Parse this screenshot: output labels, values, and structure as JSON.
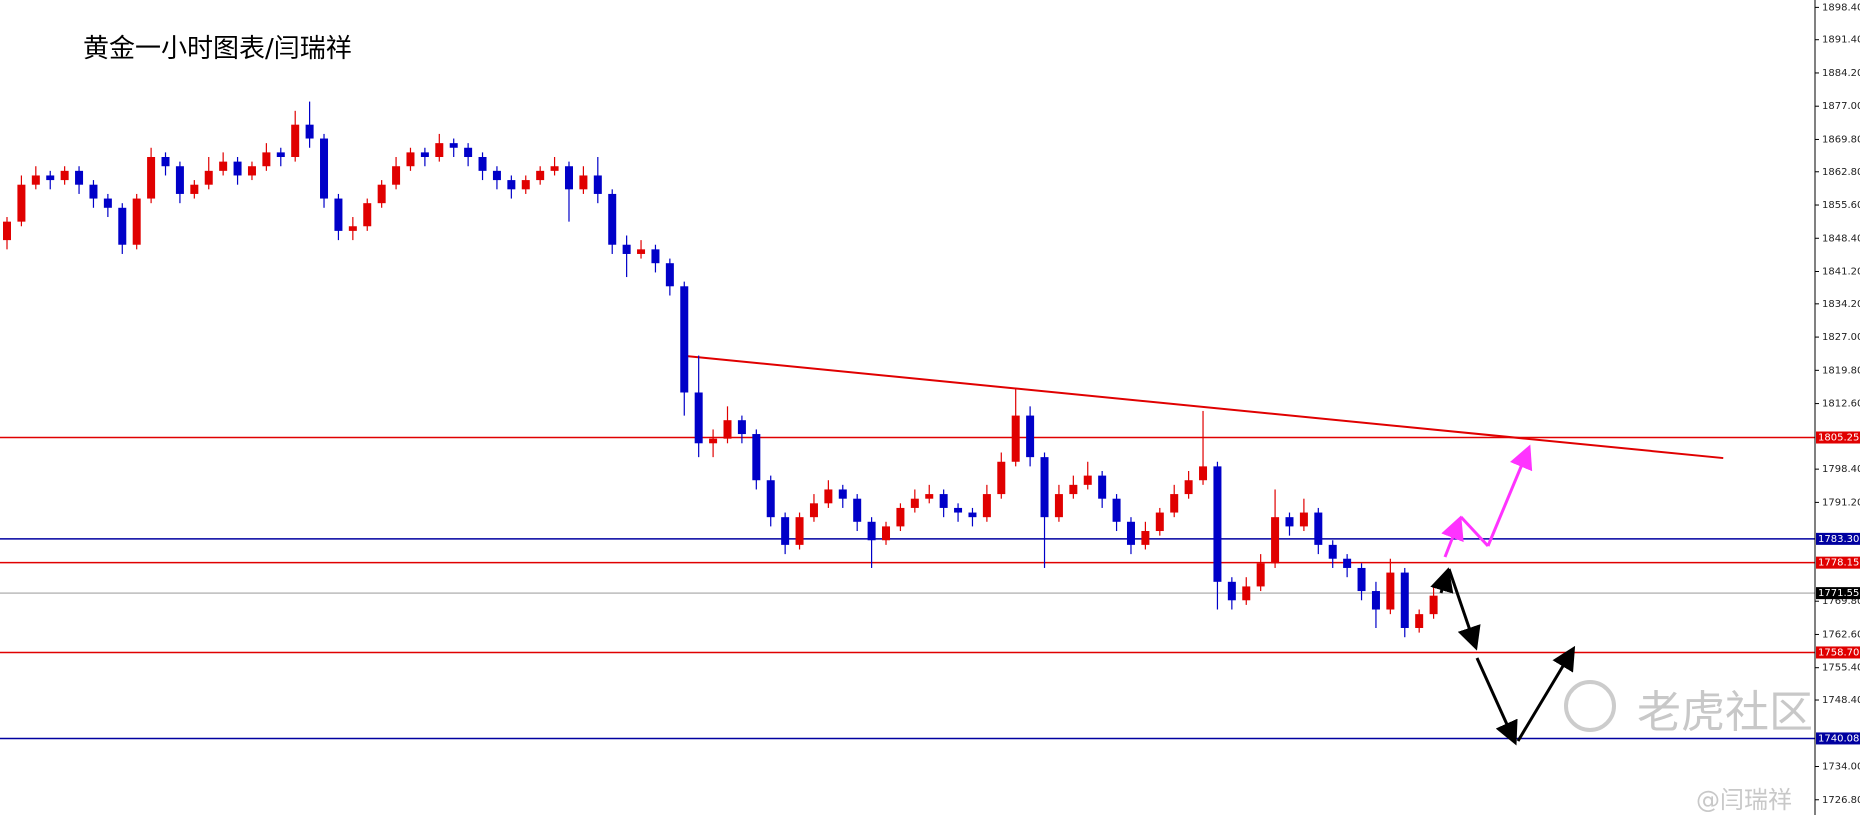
{
  "chart_data": {
    "type": "candlestick",
    "title": "黄金一小时图表/闫瑞祥",
    "up_color": "#e00000",
    "down_color": "#0000c8",
    "ohlc": [
      [
        1848,
        1853,
        1846,
        1852
      ],
      [
        1852,
        1862,
        1851,
        1860
      ],
      [
        1860,
        1864,
        1859,
        1862
      ],
      [
        1862,
        1863,
        1859,
        1861
      ],
      [
        1861,
        1864,
        1860,
        1863
      ],
      [
        1863,
        1864,
        1858,
        1860
      ],
      [
        1860,
        1861,
        1855,
        1857
      ],
      [
        1857,
        1858,
        1853,
        1855
      ],
      [
        1855,
        1856,
        1845,
        1847
      ],
      [
        1847,
        1858,
        1846,
        1857
      ],
      [
        1857,
        1868,
        1856,
        1866
      ],
      [
        1866,
        1867,
        1862,
        1864
      ],
      [
        1864,
        1865,
        1856,
        1858
      ],
      [
        1858,
        1861,
        1857,
        1860
      ],
      [
        1860,
        1866,
        1859,
        1863
      ],
      [
        1863,
        1867,
        1862,
        1865
      ],
      [
        1865,
        1866,
        1860,
        1862
      ],
      [
        1862,
        1865,
        1861,
        1864
      ],
      [
        1864,
        1869,
        1863,
        1867
      ],
      [
        1867,
        1868,
        1864,
        1866
      ],
      [
        1866,
        1876,
        1865,
        1873
      ],
      [
        1873,
        1878,
        1868,
        1870
      ],
      [
        1870,
        1871,
        1855,
        1857
      ],
      [
        1857,
        1858,
        1848,
        1850
      ],
      [
        1850,
        1853,
        1848,
        1851
      ],
      [
        1851,
        1857,
        1850,
        1856
      ],
      [
        1856,
        1861,
        1855,
        1860
      ],
      [
        1860,
        1866,
        1859,
        1864
      ],
      [
        1864,
        1868,
        1863,
        1867
      ],
      [
        1867,
        1868,
        1864,
        1866
      ],
      [
        1866,
        1871,
        1865,
        1869
      ],
      [
        1869,
        1870,
        1866,
        1868
      ],
      [
        1868,
        1869,
        1864,
        1866
      ],
      [
        1866,
        1867,
        1861,
        1863
      ],
      [
        1863,
        1864,
        1859,
        1861
      ],
      [
        1861,
        1862,
        1857,
        1859
      ],
      [
        1859,
        1862,
        1858,
        1861
      ],
      [
        1861,
        1864,
        1860,
        1863
      ],
      [
        1863,
        1866,
        1862,
        1864
      ],
      [
        1864,
        1865,
        1852,
        1859
      ],
      [
        1859,
        1864,
        1858,
        1862
      ],
      [
        1862,
        1866,
        1856,
        1858
      ],
      [
        1858,
        1859,
        1845,
        1847
      ],
      [
        1847,
        1849,
        1840,
        1845
      ],
      [
        1845,
        1848,
        1844,
        1846
      ],
      [
        1846,
        1847,
        1841,
        1843
      ],
      [
        1843,
        1844,
        1836,
        1838
      ],
      [
        1838,
        1839,
        1810,
        1815
      ],
      [
        1815,
        1823,
        1801,
        1804
      ],
      [
        1804,
        1807,
        1801,
        1805
      ],
      [
        1805,
        1812,
        1804,
        1809
      ],
      [
        1809,
        1810,
        1804,
        1806
      ],
      [
        1806,
        1807,
        1794,
        1796
      ],
      [
        1796,
        1797,
        1786,
        1788
      ],
      [
        1788,
        1789,
        1780,
        1782
      ],
      [
        1782,
        1789,
        1781,
        1788
      ],
      [
        1788,
        1793,
        1787,
        1791
      ],
      [
        1791,
        1796,
        1790,
        1794
      ],
      [
        1794,
        1795,
        1790,
        1792
      ],
      [
        1792,
        1793,
        1785,
        1787
      ],
      [
        1787,
        1788,
        1777,
        1783
      ],
      [
        1783,
        1787,
        1782,
        1786
      ],
      [
        1786,
        1791,
        1785,
        1790
      ],
      [
        1790,
        1794,
        1789,
        1792
      ],
      [
        1792,
        1795,
        1791,
        1793
      ],
      [
        1793,
        1794,
        1788,
        1790
      ],
      [
        1790,
        1791,
        1787,
        1789
      ],
      [
        1789,
        1790,
        1786,
        1788
      ],
      [
        1788,
        1795,
        1787,
        1793
      ],
      [
        1793,
        1802,
        1792,
        1800
      ],
      [
        1800,
        1816,
        1799,
        1810
      ],
      [
        1810,
        1812,
        1799,
        1801
      ],
      [
        1801,
        1802,
        1777,
        1788
      ],
      [
        1788,
        1795,
        1787,
        1793
      ],
      [
        1793,
        1797,
        1792,
        1795
      ],
      [
        1795,
        1800,
        1794,
        1797
      ],
      [
        1797,
        1798,
        1790,
        1792
      ],
      [
        1792,
        1793,
        1785,
        1787
      ],
      [
        1787,
        1788,
        1780,
        1782
      ],
      [
        1782,
        1787,
        1781,
        1785
      ],
      [
        1785,
        1790,
        1784,
        1789
      ],
      [
        1789,
        1795,
        1788,
        1793
      ],
      [
        1793,
        1798,
        1792,
        1796
      ],
      [
        1796,
        1811,
        1795,
        1799
      ],
      [
        1799,
        1800,
        1768,
        1774
      ],
      [
        1774,
        1775,
        1768,
        1770
      ],
      [
        1770,
        1775,
        1769,
        1773
      ],
      [
        1773,
        1780,
        1772,
        1778
      ],
      [
        1778,
        1794,
        1777,
        1788
      ],
      [
        1788,
        1789,
        1784,
        1786
      ],
      [
        1786,
        1792,
        1785,
        1789
      ],
      [
        1789,
        1790,
        1780,
        1782
      ],
      [
        1782,
        1783,
        1777,
        1779
      ],
      [
        1779,
        1780,
        1775,
        1777
      ],
      [
        1777,
        1778,
        1770,
        1772
      ],
      [
        1772,
        1774,
        1764,
        1768
      ],
      [
        1768,
        1779,
        1767,
        1776
      ],
      [
        1776,
        1777,
        1762,
        1764
      ],
      [
        1764,
        1768,
        1763,
        1767
      ],
      [
        1767,
        1773,
        1766,
        1771
      ]
    ],
    "ylim": [
      1723.5,
      1900
    ],
    "yticks": [
      {
        "value": 1898.4,
        "label": "1898.40"
      },
      {
        "value": 1891.4,
        "label": "1891.40"
      },
      {
        "value": 1884.2,
        "label": "1884.20"
      },
      {
        "value": 1877,
        "label": "1877.00"
      },
      {
        "value": 1869.8,
        "label": "1869.80"
      },
      {
        "value": 1862.8,
        "label": "1862.80"
      },
      {
        "value": 1855.6,
        "label": "1855.60"
      },
      {
        "value": 1848.4,
        "label": "1848.40"
      },
      {
        "value": 1841.2,
        "label": "1841.20"
      },
      {
        "value": 1834.2,
        "label": "1834.20"
      },
      {
        "value": 1827,
        "label": "1827.00"
      },
      {
        "value": 1819.8,
        "label": "1819.80"
      },
      {
        "value": 1812.6,
        "label": "1812.60"
      },
      {
        "value": 1798.4,
        "label": "1798.40"
      },
      {
        "value": 1791.2,
        "label": "1791.20"
      },
      {
        "value": 1769.8,
        "label": "1769.80"
      },
      {
        "value": 1762.6,
        "label": "1762.60"
      },
      {
        "value": 1755.4,
        "label": "1755.40"
      },
      {
        "value": 1748.4,
        "label": "1748.40"
      },
      {
        "value": 1734,
        "label": "1734.00"
      },
      {
        "value": 1726.8,
        "label": "1726.80"
      }
    ],
    "levels": [
      {
        "value": 1805.25,
        "label": "1805.25",
        "color": "#e00000"
      },
      {
        "value": 1783.3,
        "label": "1783.30",
        "color": "#0000a0"
      },
      {
        "value": 1778.15,
        "label": "1778.15",
        "color": "#e00000"
      },
      {
        "value": 1771.55,
        "label": "1771.55",
        "color": "#000000"
      },
      {
        "value": 1758.7,
        "label": "1758.70",
        "color": "#e00000"
      },
      {
        "value": 1740.08,
        "label": "1740.08",
        "color": "#0000a0"
      }
    ],
    "trendline": {
      "x": [
        47.1,
        119.1
      ],
      "y": [
        1822.9,
        1800.8
      ],
      "color": "#e00000"
    },
    "watermark": {
      "brand": "老虎社区",
      "author": "@闫瑞祥"
    }
  }
}
